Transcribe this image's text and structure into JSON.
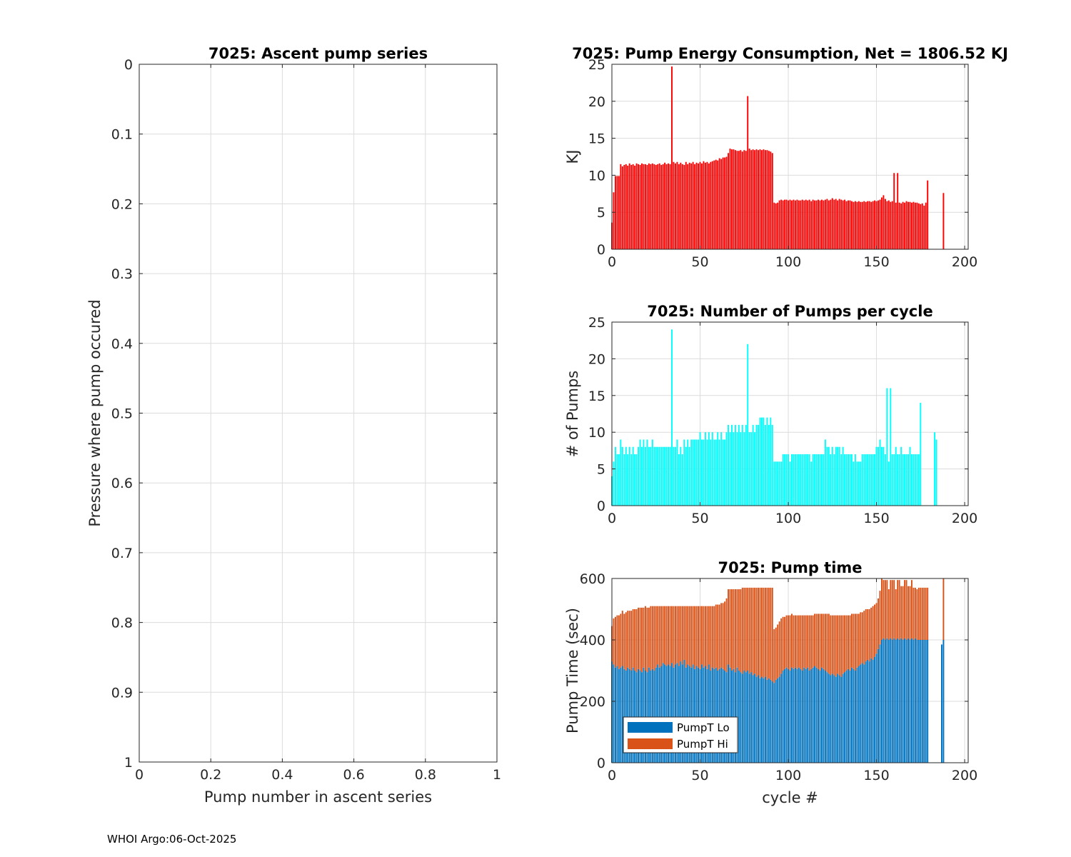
{
  "footer": "WHOI Argo:06-Oct-2025",
  "colors": {
    "energy": "#ff0000",
    "pumps": "#00ffff",
    "lo": "#0072bd",
    "hi": "#d95319",
    "grid": "#dcdcdc",
    "axis": "#262626"
  },
  "chart_data": [
    {
      "id": "ascent",
      "type": "scatter",
      "title": "7025: Ascent pump series",
      "xlabel": "Pump number in ascent series",
      "ylabel": "Pressure where pump occured",
      "xlim": [
        0,
        1
      ],
      "ylim": [
        0,
        1
      ],
      "y_reversed": true,
      "xticks": [
        0,
        0.2,
        0.4,
        0.6,
        0.8,
        1
      ],
      "xticklabels": [
        "0",
        "0.2",
        "0.4",
        "0.6",
        "0.8",
        "1"
      ],
      "yticks": [
        0,
        0.1,
        0.2,
        0.3,
        0.4,
        0.5,
        0.6,
        0.7,
        0.8,
        0.9,
        1
      ],
      "yticklabels": [
        "0",
        "0.1",
        "0.2",
        "0.3",
        "0.4",
        "0.5",
        "0.6",
        "0.7",
        "0.8",
        "0.9",
        "1"
      ],
      "grid": true,
      "points": []
    },
    {
      "id": "energy",
      "type": "bar",
      "title": "7025: Pump Energy Consumption,  Net = 1806.52 KJ",
      "xlabel": "",
      "ylabel": "KJ",
      "xlim": [
        0,
        202
      ],
      "ylim": [
        0,
        25
      ],
      "xticks": [
        0,
        50,
        100,
        150,
        200
      ],
      "xticklabels": [
        "0",
        "50",
        "100",
        "150",
        "200"
      ],
      "yticks": [
        0,
        5,
        10,
        15,
        20,
        25
      ],
      "yticklabels": [
        "0",
        "5",
        "10",
        "15",
        "20",
        "25"
      ],
      "grid": true,
      "x_start": 0,
      "values": [
        3.6,
        7.7,
        9.9,
        9.9,
        9.9,
        11.5,
        11.2,
        11.4,
        11.5,
        11.3,
        11.6,
        11.4,
        11.5,
        11.3,
        11.6,
        11.5,
        11.4,
        11.6,
        11.5,
        11.5,
        11.4,
        11.6,
        11.5,
        11.6,
        11.5,
        11.4,
        11.5,
        11.6,
        11.4,
        11.5,
        11.7,
        11.5,
        11.6,
        11.5,
        24.7,
        11.8,
        11.6,
        11.8,
        11.5,
        11.7,
        11.5,
        11.4,
        11.8,
        11.5,
        11.7,
        11.6,
        11.8,
        11.5,
        11.7,
        11.6,
        11.8,
        11.6,
        11.9,
        11.7,
        11.8,
        11.6,
        11.8,
        11.9,
        12.0,
        12.1,
        12.0,
        12.3,
        12.2,
        12.4,
        12.4,
        12.5,
        13.0,
        13.6,
        13.5,
        13.5,
        13.4,
        13.3,
        13.3,
        13.4,
        13.2,
        13.4,
        13.3,
        20.7,
        13.6,
        13.4,
        13.5,
        13.4,
        13.5,
        13.4,
        13.5,
        13.4,
        13.5,
        13.4,
        13.4,
        13.3,
        13.2,
        13.0,
        6.3,
        6.2,
        6.3,
        6.6,
        6.7,
        6.6,
        6.7,
        6.7,
        6.6,
        6.7,
        6.6,
        6.7,
        6.6,
        6.7,
        6.6,
        6.6,
        6.7,
        6.6,
        6.7,
        6.6,
        6.7,
        6.5,
        6.7,
        6.6,
        6.6,
        6.7,
        6.6,
        6.7,
        6.6,
        6.7,
        6.8,
        6.6,
        6.7,
        6.9,
        6.7,
        6.8,
        6.6,
        6.8,
        6.7,
        6.6,
        6.7,
        6.5,
        6.6,
        6.6,
        6.5,
        6.4,
        6.5,
        6.4,
        6.5,
        6.4,
        6.4,
        6.5,
        6.4,
        6.5,
        6.5,
        6.4,
        6.5,
        6.6,
        6.5,
        6.6,
        6.7,
        7.0,
        7.3,
        6.8,
        6.5,
        6.6,
        6.4,
        6.5,
        10.3,
        6.3,
        10.3,
        6.3,
        6.2,
        6.4,
        6.3,
        6.5,
        6.4,
        6.4,
        6.3,
        6.4,
        6.3,
        6.3,
        6.2,
        6.1,
        6.2,
        5.9,
        6.3,
        9.3,
        0,
        0,
        0,
        0,
        0,
        0,
        0,
        0,
        7.6
      ]
    },
    {
      "id": "pumps",
      "type": "bar",
      "title": "7025: Number of Pumps per cycle",
      "xlabel": "",
      "ylabel": "# of Pumps",
      "xlim": [
        0,
        202
      ],
      "ylim": [
        0,
        25
      ],
      "xticks": [
        0,
        50,
        100,
        150,
        200
      ],
      "xticklabels": [
        "0",
        "50",
        "100",
        "150",
        "200"
      ],
      "yticks": [
        0,
        5,
        10,
        15,
        20,
        25
      ],
      "yticklabels": [
        "0",
        "5",
        "10",
        "15",
        "20",
        "25"
      ],
      "grid": true,
      "x_start": 0,
      "values": [
        4,
        6,
        8,
        7,
        7,
        9,
        8,
        7,
        8,
        7,
        8,
        7,
        8,
        7,
        7,
        8,
        9,
        8,
        9,
        8,
        9,
        8,
        8,
        9,
        8,
        8,
        8,
        8,
        8,
        8,
        8,
        8,
        8,
        8,
        24,
        8,
        8,
        9,
        7,
        8,
        7,
        9,
        8,
        9,
        8,
        9,
        9,
        9,
        9,
        9,
        10,
        9,
        9,
        10,
        9,
        10,
        9,
        10,
        9,
        9,
        10,
        9,
        10,
        9,
        9,
        10,
        11,
        10,
        11,
        10,
        11,
        10,
        11,
        10,
        11,
        10,
        11,
        22,
        10,
        10,
        11,
        10,
        11,
        11,
        12,
        12,
        12,
        11,
        12,
        11,
        12,
        11,
        6,
        6,
        6,
        6,
        6,
        7,
        7,
        7,
        7,
        6,
        7,
        7,
        7,
        7,
        7,
        7,
        7,
        7,
        7,
        7,
        7,
        6,
        7,
        7,
        7,
        7,
        7,
        7,
        7,
        9,
        8,
        8,
        7,
        8,
        7,
        8,
        8,
        8,
        7,
        8,
        7,
        7,
        7,
        7,
        7,
        6,
        7,
        6,
        6,
        6,
        7,
        7,
        7,
        7,
        7,
        7,
        7,
        7,
        8,
        8,
        9,
        8,
        8,
        7,
        16,
        6,
        16,
        7,
        7,
        8,
        7,
        7,
        8,
        7,
        7,
        7,
        7,
        8,
        7,
        7,
        7,
        7,
        7,
        14,
        0,
        0,
        0,
        0,
        0,
        0,
        0,
        10,
        9
      ]
    },
    {
      "id": "pumptime",
      "type": "bar",
      "stacked": true,
      "title": "7025: Pump time",
      "xlabel": "cycle #",
      "ylabel": "Pump Time (sec)",
      "xlim": [
        0,
        202
      ],
      "ylim": [
        0,
        600
      ],
      "xticks": [
        0,
        50,
        100,
        150,
        200
      ],
      "xticklabels": [
        "0",
        "50",
        "100",
        "150",
        "200"
      ],
      "yticks": [
        0,
        200,
        400,
        600
      ],
      "yticklabels": [
        "0",
        "200",
        "400",
        "600"
      ],
      "grid": true,
      "legend_position": "bottom-left",
      "x_start": 0,
      "series": [
        {
          "name": "PumpT Lo",
          "values": [
            330,
            320,
            310,
            315,
            305,
            310,
            315,
            305,
            300,
            310,
            305,
            300,
            310,
            300,
            295,
            305,
            300,
            295,
            310,
            300,
            295,
            310,
            300,
            305,
            300,
            310,
            320,
            310,
            315,
            325,
            320,
            315,
            320,
            315,
            325,
            310,
            320,
            325,
            315,
            330,
            320,
            335,
            310,
            320,
            315,
            310,
            320,
            305,
            315,
            310,
            305,
            320,
            310,
            315,
            305,
            320,
            300,
            310,
            305,
            310,
            300,
            305,
            310,
            305,
            300,
            295,
            320,
            310,
            300,
            305,
            295,
            310,
            300,
            295,
            290,
            300,
            295,
            300,
            290,
            295,
            285,
            290,
            280,
            285,
            275,
            280,
            275,
            280,
            270,
            275,
            270,
            265,
            260,
            270,
            275,
            280,
            290,
            300,
            305,
            310,
            305,
            300,
            310,
            305,
            310,
            305,
            310,
            305,
            300,
            310,
            305,
            310,
            300,
            305,
            310,
            315,
            310,
            305,
            300,
            310,
            305,
            300,
            295,
            290,
            285,
            290,
            285,
            280,
            290,
            285,
            280,
            290,
            295,
            300,
            305,
            300,
            310,
            305,
            300,
            310,
            315,
            320,
            325,
            320,
            330,
            335,
            330,
            340,
            335,
            345,
            355,
            370,
            385,
            400,
            405,
            400,
            405,
            400,
            405,
            400,
            405,
            400,
            405,
            400,
            405,
            400,
            405,
            400,
            405,
            400,
            405,
            400,
            405,
            400,
            400,
            400,
            400,
            400,
            400,
            400,
            0,
            0,
            0,
            0,
            0,
            0,
            0,
            385,
            400
          ]
        },
        {
          "name": "PumpT Hi",
          "values": [
            115,
            150,
            165,
            165,
            175,
            175,
            180,
            180,
            190,
            185,
            190,
            195,
            190,
            200,
            205,
            200,
            205,
            210,
            195,
            210,
            210,
            195,
            210,
            205,
            210,
            200,
            190,
            200,
            195,
            185,
            190,
            195,
            190,
            195,
            185,
            200,
            190,
            185,
            195,
            180,
            190,
            175,
            200,
            190,
            195,
            200,
            190,
            205,
            195,
            200,
            205,
            190,
            200,
            195,
            205,
            190,
            210,
            200,
            205,
            205,
            215,
            210,
            210,
            215,
            225,
            240,
            245,
            255,
            265,
            260,
            270,
            255,
            265,
            270,
            280,
            270,
            275,
            270,
            280,
            275,
            285,
            280,
            290,
            285,
            295,
            290,
            295,
            290,
            300,
            295,
            300,
            305,
            175,
            170,
            175,
            180,
            180,
            175,
            170,
            170,
            175,
            180,
            175,
            175,
            170,
            175,
            170,
            175,
            180,
            170,
            175,
            170,
            180,
            175,
            170,
            170,
            175,
            180,
            185,
            175,
            180,
            185,
            190,
            195,
            195,
            190,
            195,
            200,
            190,
            195,
            200,
            190,
            185,
            180,
            175,
            180,
            175,
            180,
            185,
            175,
            170,
            170,
            165,
            175,
            170,
            165,
            170,
            165,
            175,
            170,
            165,
            165,
            175,
            200,
            190,
            195,
            190,
            165,
            190,
            195,
            190,
            165,
            190,
            195,
            170,
            175,
            190,
            195,
            170,
            175,
            190,
            170,
            165,
            165,
            170,
            170,
            170,
            170,
            170,
            170,
            0,
            0,
            0,
            0,
            0,
            0,
            0,
            0,
            200
          ]
        }
      ]
    }
  ]
}
